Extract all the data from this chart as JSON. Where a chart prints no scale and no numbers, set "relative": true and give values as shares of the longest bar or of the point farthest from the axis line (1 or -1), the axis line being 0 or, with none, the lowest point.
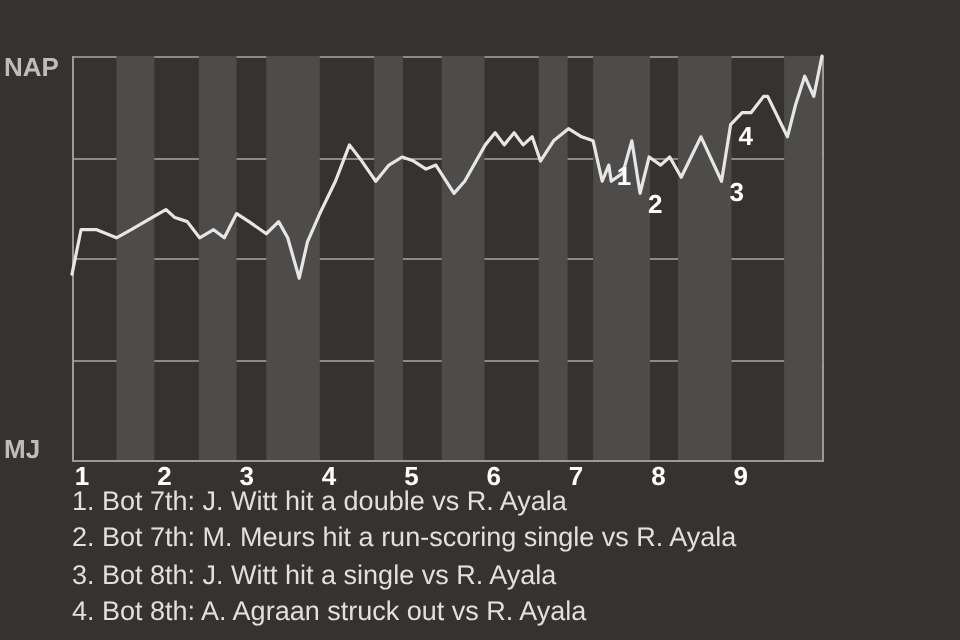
{
  "chart_data": {
    "type": "line",
    "relative": true,
    "xlim": [
      0.89,
      10
    ],
    "xticks": [
      1,
      2,
      3,
      4,
      5,
      6,
      7,
      8,
      9
    ],
    "grid": "y",
    "marker": "none",
    "line_style": "solid",
    "series": [
      {
        "color": "#e6e6e6",
        "x": [
          0.89,
          1,
          1.19,
          1.43,
          1.61,
          1.86,
          2.03,
          2.14,
          2.29,
          2.44,
          2.61,
          2.74,
          2.89,
          3.04,
          3.25,
          3.4,
          3.51,
          3.65,
          3.75,
          3.9,
          4.09,
          4.26,
          4.41,
          4.58,
          4.74,
          4.9,
          5.04,
          5.19,
          5.31,
          5.53,
          5.66,
          5.91,
          6.03,
          6.14,
          6.26,
          6.37,
          6.48,
          6.58,
          6.74,
          6.92,
          7.08,
          7.22,
          7.33,
          7.41,
          7.44,
          7.58,
          7.69,
          7.79,
          7.9,
          8.04,
          8.15,
          8.29,
          8.53,
          8.78,
          8.89,
          9.03,
          9.14,
          9.29,
          9.34,
          9.58,
          9.68,
          9.79,
          9.9,
          10
        ],
        "values": [
          0.46,
          0.57,
          0.57,
          0.55,
          0.57,
          0.6,
          0.62,
          0.6,
          0.59,
          0.55,
          0.57,
          0.55,
          0.61,
          0.59,
          0.56,
          0.59,
          0.55,
          0.45,
          0.54,
          0.61,
          0.69,
          0.78,
          0.74,
          0.69,
          0.73,
          0.75,
          0.74,
          0.72,
          0.73,
          0.66,
          0.69,
          0.78,
          0.81,
          0.78,
          0.81,
          0.78,
          0.8,
          0.74,
          0.79,
          0.82,
          0.8,
          0.79,
          0.69,
          0.73,
          0.69,
          0.71,
          0.79,
          0.66,
          0.75,
          0.73,
          0.75,
          0.7,
          0.8,
          0.69,
          0.83,
          0.86,
          0.86,
          0.9,
          0.9,
          0.8,
          0.88,
          0.95,
          0.9,
          1
        ]
      }
    ],
    "bands": [
      {
        "axis": "x",
        "from": 1.43,
        "to": 1.89,
        "color": "#4e4c4a"
      },
      {
        "axis": "x",
        "from": 2.43,
        "to": 2.89,
        "color": "#4e4c4a"
      },
      {
        "axis": "x",
        "from": 3.25,
        "to": 3.9,
        "color": "#4e4c4a"
      },
      {
        "axis": "x",
        "from": 4.56,
        "to": 4.91,
        "color": "#4e4c4a"
      },
      {
        "axis": "x",
        "from": 5.38,
        "to": 5.9,
        "color": "#4e4c4a"
      },
      {
        "axis": "x",
        "from": 6.56,
        "to": 6.91,
        "color": "#4e4c4a"
      },
      {
        "axis": "x",
        "from": 7.22,
        "to": 7.91,
        "color": "#4e4c4a"
      },
      {
        "axis": "x",
        "from": 8.25,
        "to": 8.9,
        "color": "#4e4c4a"
      },
      {
        "axis": "x",
        "from": 9.54,
        "to": 10,
        "color": "#4e4c4a"
      }
    ],
    "annotations": [
      "NAP",
      "MJ",
      {
        "text": "1",
        "x": 7.41,
        "y": 0.73
      },
      {
        "text": "2",
        "x": 7.79,
        "y": 0.66
      },
      {
        "text": "3",
        "x": 8.78,
        "y": 0.69
      },
      {
        "text": "4",
        "x": 8.89,
        "y": 0.83
      },
      "1. Bot 7th: J. Witt hit a double vs R. Ayala",
      "2. Bot 7th: M. Meurs hit a run-scoring single vs R. Ayala",
      "3. Bot 8th: J. Witt hit a single vs R. Ayala",
      "4. Bot 8th: A. Agraan struck out vs R. Ayala"
    ]
  }
}
